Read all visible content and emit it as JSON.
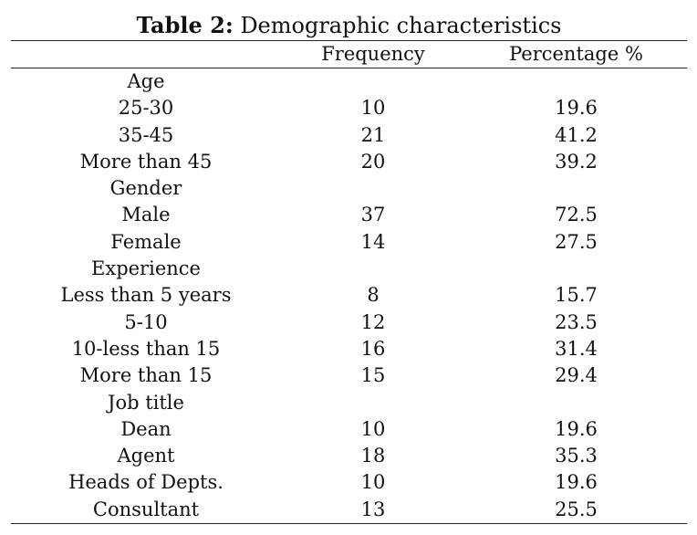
{
  "caption": {
    "label": "Table 2:",
    "text": " Demographic characteristics"
  },
  "header": {
    "col1": "",
    "col2": "Frequency",
    "col3": "Percentage %"
  },
  "rows": [
    {
      "label": "Age",
      "frequency": "",
      "percentage": ""
    },
    {
      "label": "25-30",
      "frequency": "10",
      "percentage": "19.6"
    },
    {
      "label": "35-45",
      "frequency": "21",
      "percentage": "41.2"
    },
    {
      "label": "More than 45",
      "frequency": "20",
      "percentage": "39.2"
    },
    {
      "label": "Gender",
      "frequency": "",
      "percentage": ""
    },
    {
      "label": "Male",
      "frequency": "37",
      "percentage": "72.5"
    },
    {
      "label": "Female",
      "frequency": "14",
      "percentage": "27.5"
    },
    {
      "label": "Experience",
      "frequency": "",
      "percentage": ""
    },
    {
      "label": "Less than 5 years",
      "frequency": "8",
      "percentage": "15.7"
    },
    {
      "label": "5-10",
      "frequency": "12",
      "percentage": "23.5"
    },
    {
      "label": "10-less than 15",
      "frequency": "16",
      "percentage": "31.4"
    },
    {
      "label": "More than 15",
      "frequency": "15",
      "percentage": "29.4"
    },
    {
      "label": "Job title",
      "frequency": "",
      "percentage": ""
    },
    {
      "label": "Dean",
      "frequency": "10",
      "percentage": "19.6"
    },
    {
      "label": "Agent",
      "frequency": "18",
      "percentage": "35.3"
    },
    {
      "label": "Heads of Depts.",
      "frequency": "10",
      "percentage": "19.6"
    },
    {
      "label": "Consultant",
      "frequency": "13",
      "percentage": "25.5"
    }
  ]
}
